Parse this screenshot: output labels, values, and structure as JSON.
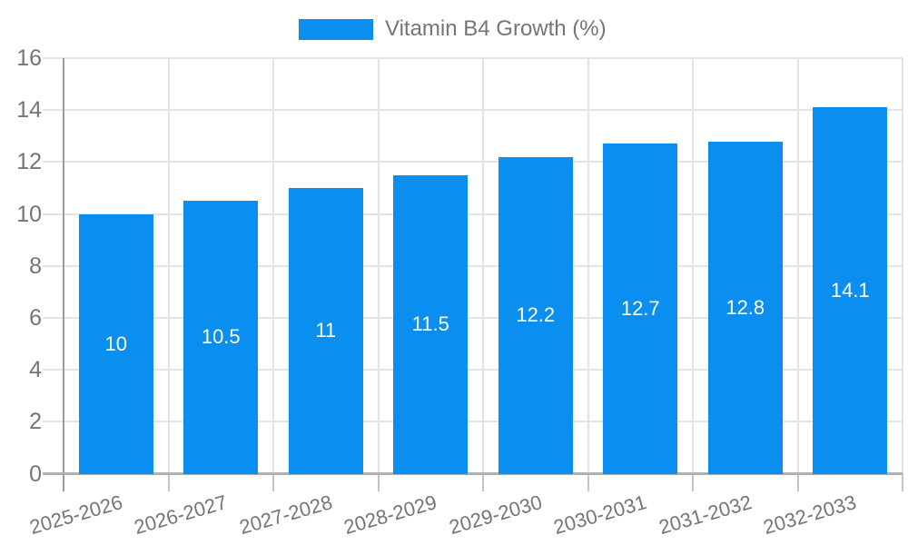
{
  "legend": {
    "label": "Vitamin B4 Growth (%)"
  },
  "chart_data": {
    "type": "bar",
    "title": "Vitamin B4 Growth (%)",
    "series_name": "Vitamin B4 Growth (%)",
    "categories": [
      "2025-2026",
      "2026-2027",
      "2027-2028",
      "2028-2029",
      "2029-2030",
      "2030-2031",
      "2031-2032",
      "2032-2033"
    ],
    "values": [
      10,
      10.5,
      11,
      11.5,
      12.2,
      12.7,
      12.8,
      14.1
    ],
    "value_labels": [
      "10",
      "10.5",
      "11",
      "11.5",
      "12.2",
      "12.7",
      "12.8",
      "14.1"
    ],
    "xlabel": "",
    "ylabel": "",
    "ylim": [
      0,
      16
    ],
    "yticks": [
      0,
      2,
      4,
      6,
      8,
      10,
      12,
      14,
      16
    ],
    "grid": true,
    "legend_position": "top",
    "colors": {
      "bar": "#0a8ff0",
      "value_label": "#ffffff",
      "axis_text": "#757575",
      "gridline": "#e4e4e4",
      "tick": "#c4c4c4",
      "x_axis_line": "#b0b0b0",
      "y_axis_line": "#9a9a9a",
      "background": "#ffffff"
    }
  }
}
